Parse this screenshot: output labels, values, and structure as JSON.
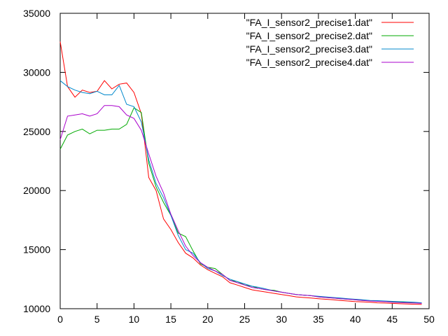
{
  "chart_data": {
    "type": "line",
    "title": "",
    "xlabel": "",
    "ylabel": "",
    "xlim": [
      0,
      50
    ],
    "ylim": [
      10000,
      35000
    ],
    "x_ticks": [
      0,
      5,
      10,
      15,
      20,
      25,
      30,
      35,
      40,
      45,
      50
    ],
    "y_ticks": [
      10000,
      15000,
      20000,
      25000,
      30000,
      35000
    ],
    "x_tick_labels": [
      "0",
      "5",
      "10",
      "15",
      "20",
      "25",
      "30",
      "35",
      "40",
      "45",
      "50"
    ],
    "y_tick_labels": [
      "10000",
      "15000",
      "20000",
      "25000",
      "30000",
      "35000"
    ],
    "grid": false,
    "legend_position": "top-right",
    "x": [
      0,
      1,
      2,
      3,
      4,
      5,
      6,
      7,
      8,
      9,
      10,
      11,
      12,
      13,
      14,
      15,
      16,
      17,
      18,
      19,
      20,
      21,
      22,
      23,
      24,
      25,
      26,
      27,
      28,
      29,
      30,
      31,
      32,
      33,
      34,
      35,
      36,
      37,
      38,
      39,
      40,
      41,
      42,
      43,
      44,
      45,
      46,
      47,
      48,
      49
    ],
    "series": [
      {
        "name": "\"FA_I_sensor2_precise1.dat\"",
        "color": "#ff0000",
        "values": [
          32600,
          28800,
          27900,
          28500,
          28300,
          28400,
          29300,
          28600,
          29000,
          29100,
          28300,
          26500,
          21100,
          20000,
          17600,
          16700,
          15600,
          14700,
          14300,
          13700,
          13300,
          13000,
          12700,
          12200,
          12000,
          11800,
          11600,
          11500,
          11400,
          11300,
          11200,
          11100,
          11000,
          10950,
          10900,
          10850,
          10800,
          10750,
          10700,
          10650,
          10600,
          10580,
          10550,
          10500,
          10480,
          10450,
          10420,
          10400,
          10380,
          10360
        ]
      },
      {
        "name": "\"FA_I_sensor2_precise2.dat\"",
        "color": "#00aa00",
        "values": [
          23500,
          24700,
          25000,
          25200,
          24800,
          25100,
          25100,
          25200,
          25200,
          25600,
          27000,
          26600,
          22300,
          20300,
          19000,
          17900,
          16400,
          16100,
          14900,
          13800,
          13500,
          13400,
          12900,
          12400,
          12300,
          12000,
          11900,
          11700,
          11600,
          11550,
          11400,
          11300,
          11200,
          11150,
          11100,
          11000,
          10950,
          10900,
          10850,
          10800,
          10750,
          10700,
          10680,
          10650,
          10600,
          10580,
          10550,
          10520,
          10500,
          10480
        ]
      },
      {
        "name": "\"FA_I_sensor2_precise3.dat\"",
        "color": "#0088cc",
        "values": [
          29300,
          28800,
          28500,
          28300,
          28200,
          28400,
          28100,
          28100,
          28900,
          27300,
          27100,
          25800,
          22600,
          20600,
          19400,
          17900,
          16200,
          15000,
          14700,
          13900,
          13400,
          13200,
          12800,
          12500,
          12300,
          12100,
          11900,
          11800,
          11650,
          11500,
          11400,
          11300,
          11200,
          11150,
          11100,
          11050,
          11000,
          10950,
          10900,
          10850,
          10800,
          10750,
          10700,
          10680,
          10650,
          10620,
          10600,
          10580,
          10550,
          10500
        ]
      },
      {
        "name": "\"FA_I_sensor2_precise4.dat\"",
        "color": "#aa00cc",
        "values": [
          24300,
          26300,
          26400,
          26500,
          26300,
          26500,
          27200,
          27200,
          27100,
          26400,
          26100,
          25100,
          23100,
          21200,
          19800,
          18000,
          16600,
          15300,
          14500,
          13900,
          13500,
          13200,
          12900,
          12400,
          12200,
          12000,
          11800,
          11700,
          11600,
          11500,
          11400,
          11300,
          11200,
          11150,
          11100,
          11000,
          10950,
          10900,
          10850,
          10800,
          10750,
          10700,
          10650,
          10620,
          10600,
          10550,
          10520,
          10500,
          10480,
          10450
        ]
      }
    ]
  }
}
